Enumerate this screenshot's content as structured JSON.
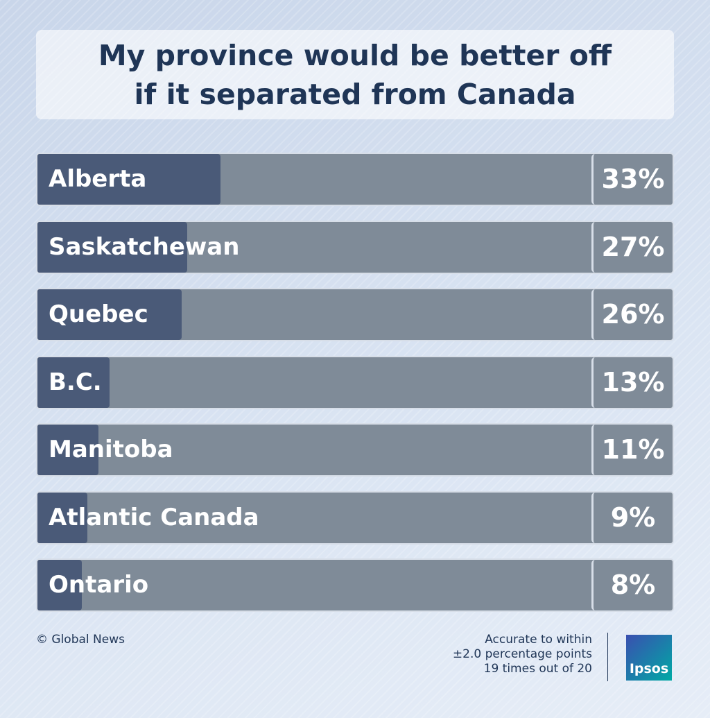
{
  "chart_data": {
    "type": "bar",
    "orientation": "horizontal",
    "title": "My province would be better off if it separated from Canada",
    "categories": [
      "Alberta",
      "Saskatchewan",
      "Quebec",
      "B.C.",
      "Manitoba",
      "Atlantic Canada",
      "Ontario"
    ],
    "values": [
      33,
      27,
      26,
      13,
      11,
      9,
      8
    ],
    "value_labels": [
      "33%",
      "27%",
      "26%",
      "13%",
      "11%",
      "9%",
      "8%"
    ],
    "xlim": [
      0,
      100
    ],
    "color": "#4a5a78",
    "track_color": "#7f8b98",
    "source": "© Global News",
    "note": [
      "Accurate to within",
      "±2.0 percentage points",
      "19 times out of 20"
    ],
    "logo": "Ipsos"
  }
}
